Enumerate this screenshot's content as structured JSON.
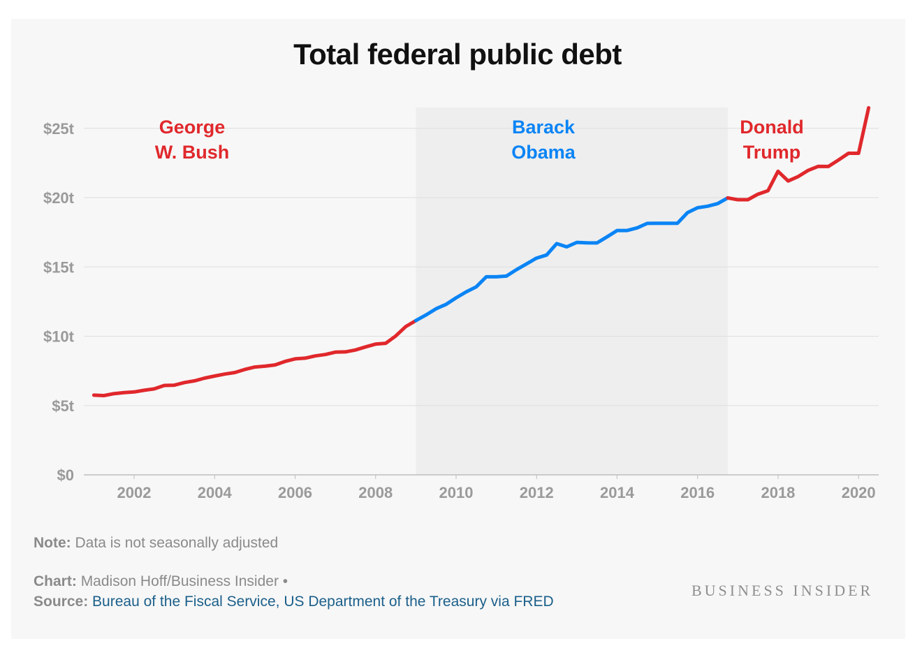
{
  "title": "Total federal public debt",
  "note": {
    "label": "Note:",
    "text": "Data is not seasonally adjusted"
  },
  "credit": {
    "chart_label": "Chart:",
    "chart_text": "Madison Hoff/Business Insider •",
    "source_label": "Source:",
    "source_text": "Bureau of the Fiscal Service, US Department of the Treasury via FRED"
  },
  "brand": "BUSINESS INSIDER",
  "colors": {
    "republican": "#e0282c",
    "democrat": "#0a84f5",
    "shade": "#eeeeee"
  },
  "chart_data": {
    "type": "line",
    "title": "Total federal public debt",
    "xlabel": "",
    "ylabel": "",
    "xlim": [
      2000.75,
      2020.5
    ],
    "ylim": [
      0,
      26.5
    ],
    "x_ticks": [
      2002,
      2004,
      2006,
      2008,
      2010,
      2012,
      2014,
      2016,
      2018,
      2020
    ],
    "x_tick_labels": [
      "2002",
      "2004",
      "2006",
      "2008",
      "2010",
      "2012",
      "2014",
      "2016",
      "2018",
      "2020"
    ],
    "y_ticks": [
      0,
      5,
      10,
      15,
      20,
      25
    ],
    "y_tick_labels": [
      "$0",
      "$5t",
      "$10t",
      "$15t",
      "$20t",
      "$25t"
    ],
    "grid": true,
    "shaded_region": {
      "x_start": 2009.0,
      "x_end": 2016.75,
      "label": "Barack Obama"
    },
    "annotations": [
      {
        "lines": [
          "George",
          "W. Bush"
        ],
        "party": "republican"
      },
      {
        "lines": [
          "Barack",
          "Obama"
        ],
        "party": "democrat"
      },
      {
        "lines": [
          "Donald",
          "Trump"
        ],
        "party": "republican"
      }
    ],
    "series": [
      {
        "name": "George W. Bush",
        "party": "republican",
        "x": [
          2001.0,
          2001.25,
          2001.5,
          2001.75,
          2002.0,
          2002.25,
          2002.5,
          2002.75,
          2003.0,
          2003.25,
          2003.5,
          2003.75,
          2004.0,
          2004.25,
          2004.5,
          2004.75,
          2005.0,
          2005.25,
          2005.5,
          2005.75,
          2006.0,
          2006.25,
          2006.5,
          2006.75,
          2007.0,
          2007.25,
          2007.5,
          2007.75,
          2008.0,
          2008.25,
          2008.5,
          2008.75,
          2009.0
        ],
        "y": [
          5.75,
          5.72,
          5.86,
          5.93,
          5.98,
          6.1,
          6.2,
          6.45,
          6.47,
          6.66,
          6.78,
          6.98,
          7.13,
          7.27,
          7.38,
          7.6,
          7.78,
          7.84,
          7.93,
          8.18,
          8.37,
          8.42,
          8.58,
          8.68,
          8.85,
          8.87,
          9.01,
          9.23,
          9.43,
          9.49,
          10.02,
          10.7,
          11.13
        ]
      },
      {
        "name": "Barack Obama",
        "party": "democrat",
        "x": [
          2009.0,
          2009.25,
          2009.5,
          2009.75,
          2010.0,
          2010.25,
          2010.5,
          2010.75,
          2011.0,
          2011.25,
          2011.5,
          2011.75,
          2012.0,
          2012.25,
          2012.5,
          2012.75,
          2013.0,
          2013.25,
          2013.5,
          2013.75,
          2014.0,
          2014.25,
          2014.5,
          2014.75,
          2015.0,
          2015.25,
          2015.5,
          2015.75,
          2016.0,
          2016.25,
          2016.5,
          2016.75
        ],
        "y": [
          11.13,
          11.53,
          11.98,
          12.3,
          12.77,
          13.2,
          13.56,
          14.29,
          14.29,
          14.34,
          14.8,
          15.22,
          15.64,
          15.86,
          16.68,
          16.45,
          16.77,
          16.74,
          16.73,
          17.17,
          17.63,
          17.63,
          17.82,
          18.14,
          18.15,
          18.15,
          18.15,
          18.92,
          19.27,
          19.38,
          19.57,
          19.98
        ]
      },
      {
        "name": "Donald Trump",
        "party": "republican",
        "x": [
          2016.75,
          2017.0,
          2017.25,
          2017.5,
          2017.75,
          2018.0,
          2018.25,
          2018.5,
          2018.75,
          2019.0,
          2019.25,
          2019.5,
          2019.75,
          2020.0,
          2020.25
        ],
        "y": [
          19.98,
          19.85,
          19.85,
          20.25,
          20.5,
          21.9,
          21.2,
          21.52,
          21.97,
          22.26,
          22.25,
          22.71,
          23.2,
          23.2,
          26.48
        ]
      }
    ]
  }
}
